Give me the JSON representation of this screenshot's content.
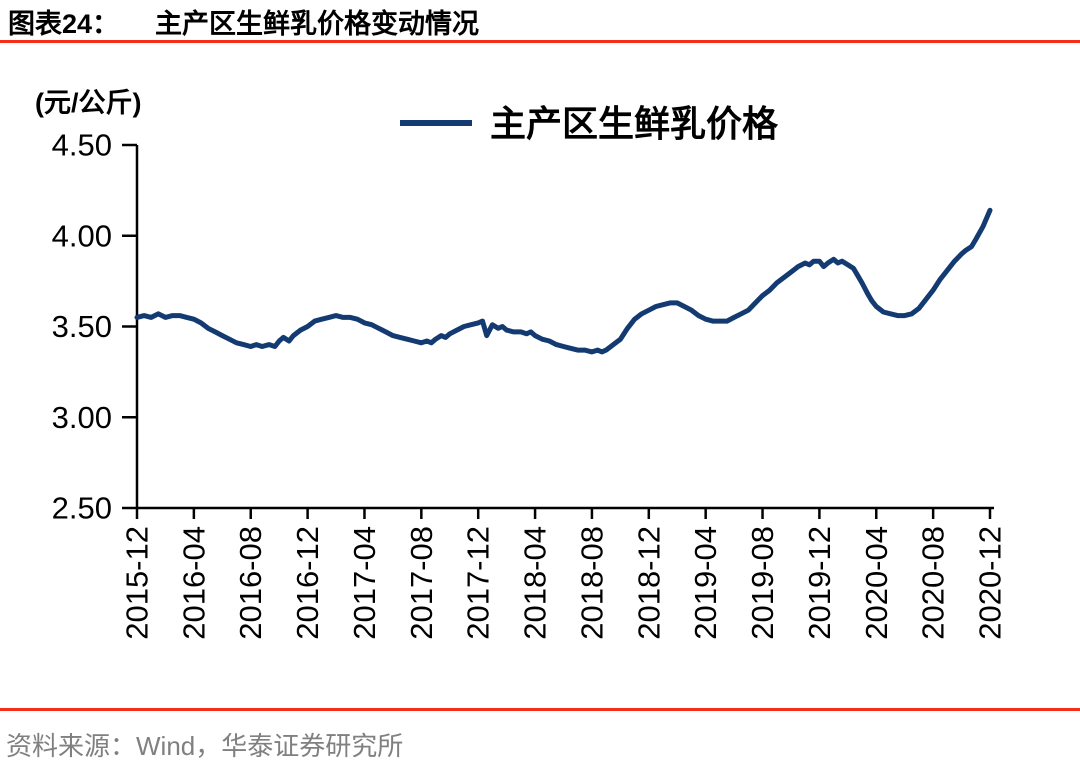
{
  "header": {
    "figure_label": "图表24：",
    "title": "主产区生鲜乳价格变动情况"
  },
  "source": {
    "text": "资料来源：Wind，华泰证券研究所"
  },
  "colors": {
    "accent_red": "#f42e17",
    "line_navy": "#133b72",
    "axis_black": "#000000",
    "source_gray": "#808080"
  },
  "chart_data": {
    "type": "line",
    "title": "主产区生鲜乳价格变动情况",
    "unit_label": "(元/公斤)",
    "xlabel": "",
    "ylabel": "元/公斤",
    "ylim": [
      2.5,
      4.5
    ],
    "yticks": [
      4.5,
      4.0,
      3.5,
      3.0,
      2.5
    ],
    "grid": false,
    "legend_position": "top-center",
    "categories": [
      "2015-12",
      "2016-04",
      "2016-08",
      "2016-12",
      "2017-04",
      "2017-08",
      "2017-12",
      "2018-04",
      "2018-08",
      "2018-12",
      "2019-04",
      "2019-08",
      "2019-12",
      "2020-04",
      "2020-08",
      "2020-12"
    ],
    "x_tick_interval_months": 4,
    "x_range_months": [
      0,
      60
    ],
    "legend": [
      {
        "name": "主产区生鲜乳价格",
        "color": "#133b72"
      }
    ],
    "series": [
      {
        "name": "主产区生鲜乳价格",
        "color": "#133b72",
        "points": [
          [
            0,
            3.55
          ],
          [
            0.5,
            3.56
          ],
          [
            1,
            3.55
          ],
          [
            1.5,
            3.57
          ],
          [
            2,
            3.55
          ],
          [
            2.5,
            3.56
          ],
          [
            3,
            3.56
          ],
          [
            3.5,
            3.55
          ],
          [
            4,
            3.54
          ],
          [
            4.5,
            3.52
          ],
          [
            5,
            3.49
          ],
          [
            5.5,
            3.47
          ],
          [
            6,
            3.45
          ],
          [
            6.5,
            3.43
          ],
          [
            7,
            3.41
          ],
          [
            7.5,
            3.4
          ],
          [
            8,
            3.39
          ],
          [
            8.4,
            3.4
          ],
          [
            8.8,
            3.39
          ],
          [
            9.3,
            3.4
          ],
          [
            9.7,
            3.39
          ],
          [
            10,
            3.42
          ],
          [
            10.3,
            3.44
          ],
          [
            10.7,
            3.42
          ],
          [
            11,
            3.45
          ],
          [
            11.5,
            3.48
          ],
          [
            12,
            3.5
          ],
          [
            12.5,
            3.53
          ],
          [
            13,
            3.54
          ],
          [
            13.5,
            3.55
          ],
          [
            14,
            3.56
          ],
          [
            14.5,
            3.55
          ],
          [
            15,
            3.55
          ],
          [
            15.5,
            3.54
          ],
          [
            16,
            3.52
          ],
          [
            16.5,
            3.51
          ],
          [
            17,
            3.49
          ],
          [
            17.5,
            3.47
          ],
          [
            18,
            3.45
          ],
          [
            18.5,
            3.44
          ],
          [
            19,
            3.43
          ],
          [
            19.5,
            3.42
          ],
          [
            20,
            3.41
          ],
          [
            20.4,
            3.42
          ],
          [
            20.7,
            3.41
          ],
          [
            21,
            3.43
          ],
          [
            21.4,
            3.45
          ],
          [
            21.7,
            3.44
          ],
          [
            22,
            3.46
          ],
          [
            22.5,
            3.48
          ],
          [
            23,
            3.5
          ],
          [
            23.5,
            3.51
          ],
          [
            24,
            3.52
          ],
          [
            24.3,
            3.53
          ],
          [
            24.6,
            3.45
          ],
          [
            25,
            3.51
          ],
          [
            25.4,
            3.49
          ],
          [
            25.7,
            3.5
          ],
          [
            26,
            3.48
          ],
          [
            26.5,
            3.47
          ],
          [
            27,
            3.47
          ],
          [
            27.4,
            3.46
          ],
          [
            27.7,
            3.47
          ],
          [
            28,
            3.45
          ],
          [
            28.5,
            3.43
          ],
          [
            29,
            3.42
          ],
          [
            29.5,
            3.4
          ],
          [
            30,
            3.39
          ],
          [
            30.5,
            3.38
          ],
          [
            31,
            3.37
          ],
          [
            31.5,
            3.37
          ],
          [
            32,
            3.36
          ],
          [
            32.4,
            3.37
          ],
          [
            32.7,
            3.36
          ],
          [
            33,
            3.37
          ],
          [
            33.5,
            3.4
          ],
          [
            34,
            3.43
          ],
          [
            34.5,
            3.49
          ],
          [
            35,
            3.54
          ],
          [
            35.5,
            3.57
          ],
          [
            36,
            3.59
          ],
          [
            36.5,
            3.61
          ],
          [
            37,
            3.62
          ],
          [
            37.5,
            3.63
          ],
          [
            38,
            3.63
          ],
          [
            38.5,
            3.61
          ],
          [
            39,
            3.59
          ],
          [
            39.5,
            3.56
          ],
          [
            40,
            3.54
          ],
          [
            40.5,
            3.53
          ],
          [
            41,
            3.53
          ],
          [
            41.5,
            3.53
          ],
          [
            42,
            3.55
          ],
          [
            42.5,
            3.57
          ],
          [
            43,
            3.59
          ],
          [
            43.5,
            3.63
          ],
          [
            44,
            3.67
          ],
          [
            44.5,
            3.7
          ],
          [
            45,
            3.74
          ],
          [
            45.5,
            3.77
          ],
          [
            46,
            3.8
          ],
          [
            46.5,
            3.83
          ],
          [
            47,
            3.85
          ],
          [
            47.3,
            3.84
          ],
          [
            47.6,
            3.86
          ],
          [
            48,
            3.86
          ],
          [
            48.3,
            3.83
          ],
          [
            48.6,
            3.85
          ],
          [
            49,
            3.87
          ],
          [
            49.3,
            3.85
          ],
          [
            49.6,
            3.86
          ],
          [
            50,
            3.84
          ],
          [
            50.4,
            3.82
          ],
          [
            50.7,
            3.78
          ],
          [
            51,
            3.74
          ],
          [
            51.4,
            3.68
          ],
          [
            51.7,
            3.64
          ],
          [
            52,
            3.61
          ],
          [
            52.5,
            3.58
          ],
          [
            53,
            3.57
          ],
          [
            53.5,
            3.56
          ],
          [
            54,
            3.56
          ],
          [
            54.5,
            3.57
          ],
          [
            55,
            3.6
          ],
          [
            55.5,
            3.65
          ],
          [
            56,
            3.7
          ],
          [
            56.5,
            3.76
          ],
          [
            57,
            3.81
          ],
          [
            57.5,
            3.86
          ],
          [
            58,
            3.9
          ],
          [
            58.3,
            3.92
          ],
          [
            58.7,
            3.94
          ],
          [
            59,
            3.98
          ],
          [
            59.5,
            4.05
          ],
          [
            60,
            4.14
          ]
        ]
      }
    ]
  }
}
